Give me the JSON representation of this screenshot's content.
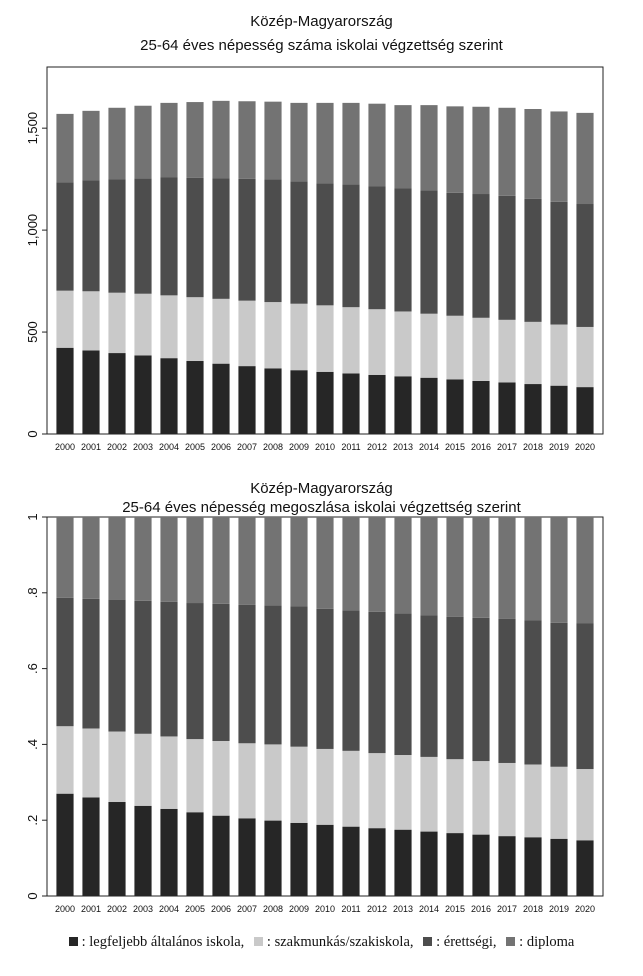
{
  "colors": {
    "legfeljebb": "#262626",
    "szakmunkas": "#c9c9c9",
    "erettsegi": "#4d4d4d",
    "diploma": "#737373"
  },
  "chart_data": [
    {
      "type": "bar",
      "stacked": true,
      "title": "Közép-Magyarország",
      "subtitle": "25-64 éves népesség száma iskolai végzettség szerint",
      "categories": [
        "2000",
        "2001",
        "2002",
        "2003",
        "2004",
        "2005",
        "2006",
        "2007",
        "2008",
        "2009",
        "2010",
        "2011",
        "2012",
        "2013",
        "2014",
        "2015",
        "2016",
        "2017",
        "2018",
        "2019",
        "2020"
      ],
      "ylim": [
        0,
        1800
      ],
      "yticks": [
        0,
        500,
        1000,
        1500
      ],
      "yticklabels": [
        "0",
        "500",
        "1,000",
        "1,500"
      ],
      "series": [
        {
          "key": "legfeljebb",
          "values": [
            423,
            410,
            397,
            385,
            372,
            358,
            345,
            333,
            322,
            313,
            305,
            297,
            290,
            283,
            276,
            268,
            260,
            253,
            245,
            237,
            230
          ]
        },
        {
          "key": "szakmunkas",
          "values": [
            280,
            290,
            296,
            303,
            308,
            313,
            318,
            321,
            325,
            326,
            326,
            325,
            322,
            318,
            314,
            312,
            310,
            307,
            305,
            300,
            295
          ]
        },
        {
          "key": "erettsegi",
          "values": [
            532,
            545,
            557,
            566,
            578,
            585,
            590,
            598,
            601,
            600,
            598,
            603,
            602,
            603,
            604,
            603,
            607,
            608,
            603,
            602,
            603
          ]
        },
        {
          "key": "diploma",
          "values": [
            335,
            340,
            350,
            356,
            366,
            372,
            381,
            380,
            382,
            385,
            395,
            399,
            406,
            409,
            419,
            424,
            428,
            432,
            441,
            443,
            447
          ]
        }
      ]
    },
    {
      "type": "bar",
      "stacked": true,
      "title": "Közép-Magyarország",
      "subtitle": "25-64 éves népesség megoszlása iskolai végzettség szerint",
      "categories": [
        "2000",
        "2001",
        "2002",
        "2003",
        "2004",
        "2005",
        "2006",
        "2007",
        "2008",
        "2009",
        "2010",
        "2011",
        "2012",
        "2013",
        "2014",
        "2015",
        "2016",
        "2017",
        "2018",
        "2019",
        "2020"
      ],
      "ylim": [
        0,
        1
      ],
      "yticks": [
        0,
        0.2,
        0.4,
        0.6,
        0.8,
        1
      ],
      "yticklabels": [
        "0",
        ".2",
        ".4",
        ".6",
        ".8",
        "1"
      ],
      "series": [
        {
          "key": "legfeljebb",
          "values": [
            0.27,
            0.26,
            0.248,
            0.238,
            0.23,
            0.221,
            0.212,
            0.205,
            0.199,
            0.193,
            0.188,
            0.183,
            0.179,
            0.175,
            0.17,
            0.166,
            0.162,
            0.158,
            0.155,
            0.151,
            0.147
          ]
        },
        {
          "key": "szakmunkas",
          "values": [
            0.178,
            0.182,
            0.186,
            0.19,
            0.191,
            0.193,
            0.197,
            0.198,
            0.201,
            0.201,
            0.2,
            0.2,
            0.198,
            0.197,
            0.197,
            0.195,
            0.194,
            0.193,
            0.192,
            0.19,
            0.188
          ]
        },
        {
          "key": "erettsegi",
          "values": [
            0.339,
            0.342,
            0.348,
            0.351,
            0.355,
            0.359,
            0.362,
            0.365,
            0.367,
            0.37,
            0.37,
            0.371,
            0.373,
            0.374,
            0.374,
            0.376,
            0.378,
            0.38,
            0.38,
            0.38,
            0.385
          ]
        },
        {
          "key": "diploma",
          "values": [
            0.213,
            0.216,
            0.218,
            0.221,
            0.224,
            0.227,
            0.229,
            0.232,
            0.233,
            0.236,
            0.242,
            0.246,
            0.25,
            0.254,
            0.259,
            0.263,
            0.266,
            0.269,
            0.273,
            0.279,
            0.28
          ]
        }
      ]
    }
  ],
  "legend": [
    {
      "key": "legfeljebb",
      "label": ": legfeljebb általános iskola,"
    },
    {
      "key": "szakmunkas",
      "label": ": szakmunkás/szakiskola,"
    },
    {
      "key": "erettsegi",
      "label": ": érettségi,"
    },
    {
      "key": "diploma",
      "label": ": diploma"
    }
  ]
}
